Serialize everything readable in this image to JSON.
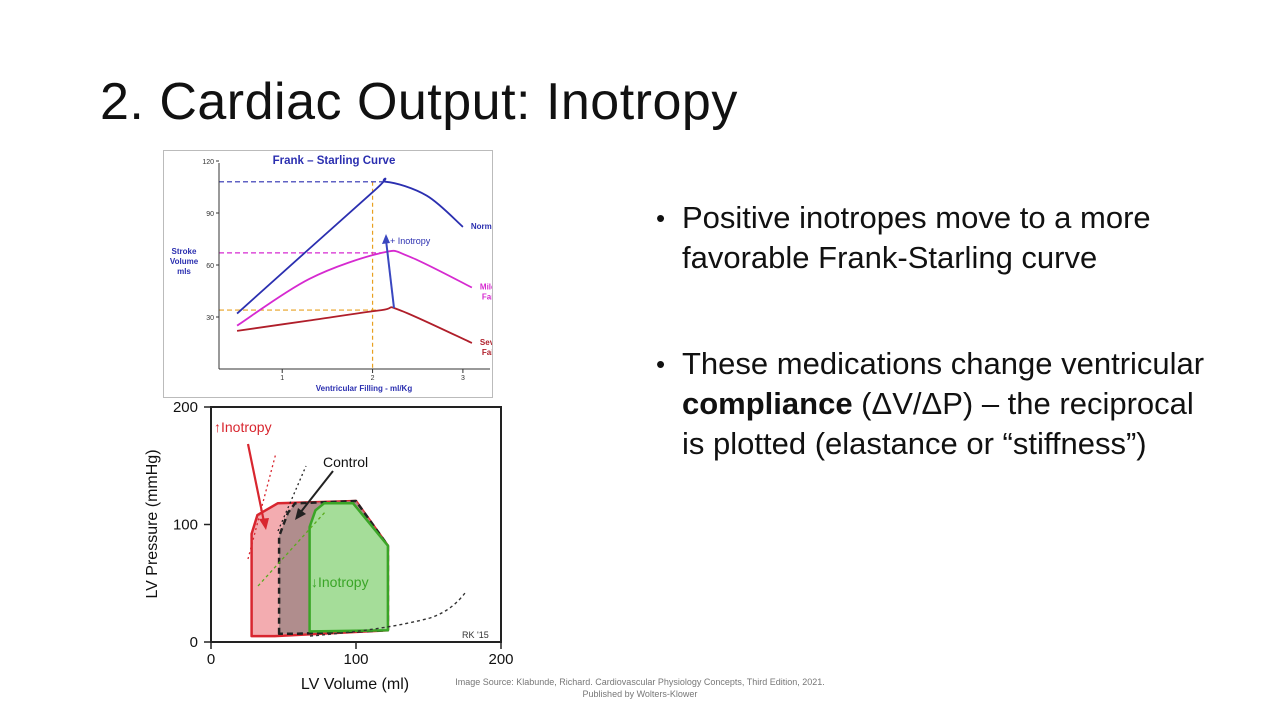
{
  "slide": {
    "title": "2. Cardiac Output: Inotropy",
    "bullets": [
      {
        "parts": [
          {
            "text": "Positive inotropes move to a more favorable Frank-Starling curve",
            "bold": false
          }
        ]
      },
      {
        "parts": [
          {
            "text": "These medications change ventricular ",
            "bold": false
          },
          {
            "text": "compliance",
            "bold": true
          },
          {
            "text": " (ΔV/ΔP) – the reciprocal is plotted (elastance or “stiffness”)",
            "bold": false
          }
        ]
      }
    ],
    "source": {
      "line1": "Image Source: Klabunde, Richard. Cardiovascular Physiology Concepts, Third Edition, 2021.",
      "line2": "Published by Wolters-Klower"
    }
  },
  "chart_data": [
    {
      "type": "line",
      "title": "Frank – Starling Curve",
      "xlabel": "Ventricular Filling - ml/Kg",
      "ylabel": "Stroke Volume mls",
      "xticks": [
        1,
        2,
        3
      ],
      "yticks": [
        30,
        60,
        90,
        120
      ],
      "xlim": [
        0.3,
        3.3
      ],
      "ylim": [
        0,
        120
      ],
      "series": [
        {
          "name": "Normal",
          "color": "#2b2fb0",
          "x": [
            0.5,
            2.0,
            2.15,
            2.6,
            3.0
          ],
          "y": [
            32,
            102,
            108,
            100,
            82
          ]
        },
        {
          "name": "Mild Failure",
          "color": "#d62ad0",
          "x": [
            0.5,
            1.3,
            2.1,
            2.4,
            3.1
          ],
          "y": [
            25,
            52,
            67,
            65,
            47
          ]
        },
        {
          "name": "Severe Failure",
          "color": "#b01e2a",
          "x": [
            0.5,
            1.3,
            2.1,
            2.3,
            3.1
          ],
          "y": [
            22,
            28,
            34,
            34,
            15
          ]
        }
      ],
      "annotations": [
        "+ Inotropy"
      ],
      "colors": {
        "arrow": "#3a47c0",
        "guide": "#e8a020",
        "title": "#2b2fb0"
      }
    },
    {
      "type": "line",
      "title": "",
      "xlabel": "LV Volume (ml)",
      "ylabel": "LV Pressure (mmHg)",
      "xticks": [
        0,
        100,
        200
      ],
      "yticks": [
        0,
        100,
        200
      ],
      "xlim": [
        0,
        200
      ],
      "ylim": [
        0,
        200
      ],
      "loops": [
        {
          "name": "↑Inotropy",
          "color": "#d8262f",
          "fill": "#f2a3a7",
          "x": [
            28,
            28,
            32,
            46,
            100,
            122,
            122,
            44,
            28
          ],
          "y": [
            5,
            92,
            108,
            118,
            120,
            82,
            10,
            5,
            5
          ]
        },
        {
          "name": "Control",
          "color": "#222222",
          "fill": "#a8898a",
          "x": [
            47,
            47,
            53,
            58,
            100,
            122,
            122,
            58,
            47
          ],
          "y": [
            7,
            90,
            110,
            118,
            120,
            82,
            10,
            7,
            7
          ]
        },
        {
          "name": "↓Inotropy",
          "color": "#3aa527",
          "fill": "#a4e59a",
          "x": [
            68,
            68,
            72,
            78,
            98,
            122,
            122,
            70,
            68
          ],
          "y": [
            9,
            98,
            112,
            118,
            118,
            82,
            10,
            9,
            9
          ]
        }
      ],
      "labels": [
        "↑Inotropy",
        "Control",
        "↓Inotropy",
        "RK '15"
      ],
      "colors": {
        "up": "#d8262f",
        "control": "#222222",
        "down": "#3aa527"
      }
    }
  ]
}
